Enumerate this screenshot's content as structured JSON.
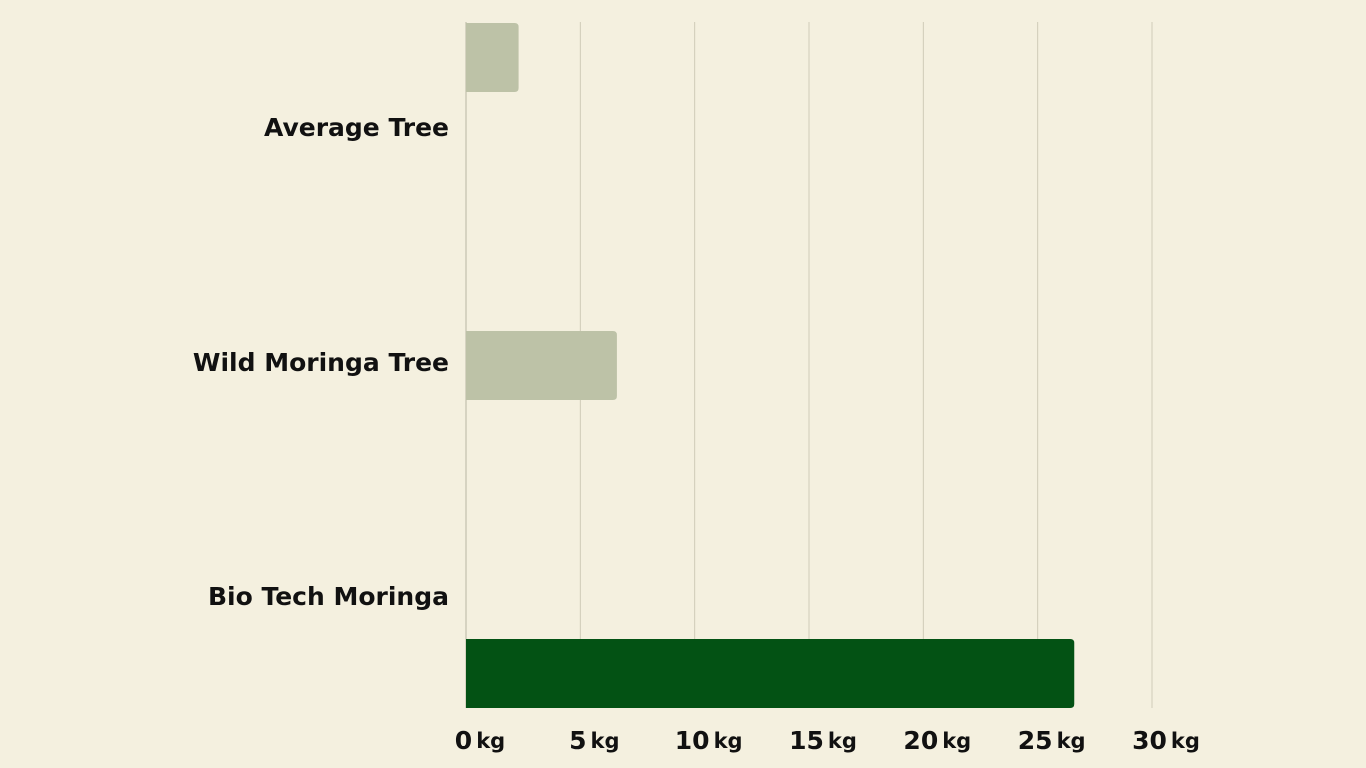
{
  "colors": {
    "background": "#f4f0df",
    "bar_muted": "#bdc2a7",
    "bar_highlight": "#035214",
    "grid": "#cfcbb8",
    "text": "#111111"
  },
  "chart_data": {
    "type": "bar",
    "orientation": "horizontal",
    "categories": [
      "Average Tree",
      "Wild Moringa Tree",
      "Bio Tech Moringa"
    ],
    "values": [
      2.3,
      6.6,
      26.6
    ],
    "bar_colors": [
      "#bdc2a7",
      "#bdc2a7",
      "#035214"
    ],
    "title": "",
    "xlabel": "",
    "ylabel": "",
    "xlim": [
      0,
      30
    ],
    "x_ticks": [
      0,
      5,
      10,
      15,
      20,
      25,
      30
    ],
    "tick_unit": "kg",
    "grid": "vertical",
    "legend": "none"
  }
}
